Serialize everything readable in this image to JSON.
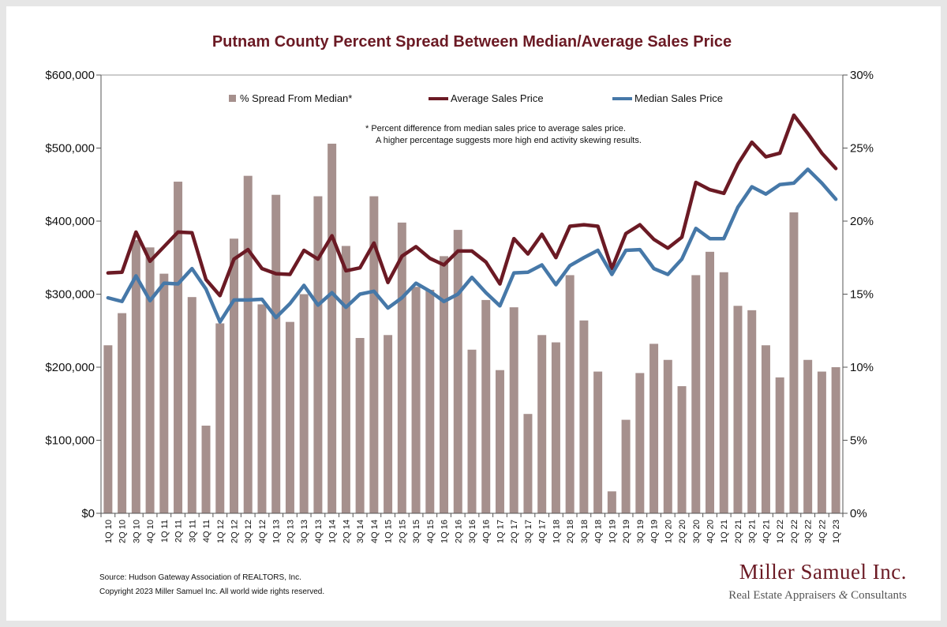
{
  "colors": {
    "bar": "#a6908d",
    "average": "#6b1a24",
    "median": "#4678a8",
    "title": "#6b1a24"
  },
  "footer": {
    "source": "Source: Hudson Gateway Association of REALTORS, Inc.",
    "copyright": "Copyright 2023 Miller Samuel Inc.  All world wide rights reserved."
  },
  "logo": {
    "name": "Miller Samuel Inc.",
    "tagline_part1": "Real Estate Appraisers ",
    "ampersand": "&",
    "tagline_part2": " Consultants"
  },
  "chart_data": {
    "type": "bar",
    "title": "Putnam County Percent Spread Between Median/Average Sales Price",
    "note_line1": "*  Percent difference from median sales price to average sales price.",
    "note_line2": "A higher percentage suggests more high end activity skewing results.",
    "legend_placement": "top",
    "grid": false,
    "categories": [
      "1Q 10",
      "2Q 10",
      "3Q 10",
      "4Q 10",
      "1Q 11",
      "2Q 11",
      "3Q 11",
      "4Q 11",
      "1Q 12",
      "2Q 12",
      "3Q 12",
      "4Q 12",
      "1Q 13",
      "2Q 13",
      "3Q 13",
      "4Q 13",
      "1Q 14",
      "2Q 14",
      "3Q 14",
      "4Q 14",
      "1Q 15",
      "2Q 15",
      "3Q 15",
      "4Q 15",
      "1Q 16",
      "2Q 16",
      "3Q 16",
      "4Q 16",
      "1Q 17",
      "2Q 17",
      "3Q 17",
      "4Q 17",
      "1Q 18",
      "2Q 18",
      "3Q 18",
      "4Q 18",
      "1Q 19",
      "2Q 19",
      "3Q 19",
      "4Q 19",
      "1Q 20",
      "2Q 20",
      "3Q 20",
      "4Q 20",
      "1Q 21",
      "2Q 21",
      "3Q 21",
      "4Q 21",
      "1Q 22",
      "2Q 22",
      "3Q 22",
      "4Q 22",
      "1Q 23"
    ],
    "left_axis": {
      "min": 0,
      "max": 600000,
      "ticks": [
        0,
        100000,
        200000,
        300000,
        400000,
        500000,
        600000
      ],
      "tick_labels": [
        "$0",
        "$100,000",
        "$200,000",
        "$300,000",
        "$400,000",
        "$500,000",
        "$600,000"
      ]
    },
    "right_axis": {
      "min": 0,
      "max": 30,
      "ticks": [
        0,
        5,
        10,
        15,
        20,
        25,
        30
      ],
      "tick_labels": [
        "0%",
        "5%",
        "10%",
        "15%",
        "20%",
        "25%",
        "30%"
      ]
    },
    "series": [
      {
        "name": "% Spread From Median*",
        "type": "bar",
        "axis": "right",
        "values": [
          11.5,
          13.7,
          18.7,
          18.2,
          16.4,
          22.7,
          14.8,
          6.0,
          13.0,
          18.8,
          23.1,
          14.3,
          21.8,
          13.1,
          15.0,
          21.7,
          25.3,
          18.3,
          12.0,
          21.7,
          12.2,
          19.9,
          15.5,
          15.3,
          17.6,
          19.4,
          11.2,
          14.6,
          9.8,
          14.1,
          6.8,
          12.2,
          11.7,
          16.3,
          13.2,
          9.7,
          1.5,
          6.4,
          9.6,
          11.6,
          10.5,
          8.7,
          16.3,
          17.9,
          16.5,
          14.2,
          13.9,
          11.5,
          9.3,
          20.6,
          10.5,
          9.7,
          10.0
        ]
      },
      {
        "name": "Average Sales Price",
        "type": "line",
        "axis": "left",
        "values": [
          329000,
          330000,
          385000,
          345000,
          365000,
          385000,
          384000,
          320000,
          298000,
          348000,
          361000,
          335000,
          328000,
          327000,
          360000,
          348000,
          380000,
          332000,
          336000,
          370000,
          316000,
          352000,
          365000,
          349000,
          340000,
          359000,
          359000,
          344000,
          314000,
          376000,
          355000,
          382000,
          350000,
          393000,
          395000,
          393000,
          335000,
          383000,
          395000,
          375000,
          363000,
          378000,
          453000,
          443000,
          438000,
          478000,
          508000,
          488000,
          493000,
          545000,
          520000,
          493000,
          472000
        ]
      },
      {
        "name": "Median Sales Price",
        "type": "line",
        "axis": "left",
        "values": [
          295000,
          290000,
          325000,
          291000,
          315000,
          314000,
          335000,
          307000,
          262000,
          292000,
          292000,
          293000,
          268000,
          287000,
          312000,
          285000,
          302000,
          282000,
          300000,
          304000,
          281000,
          295000,
          315000,
          304000,
          290000,
          300000,
          323000,
          302000,
          284000,
          329000,
          330000,
          340000,
          313000,
          339000,
          350000,
          360000,
          327000,
          360000,
          361000,
          335000,
          327000,
          348000,
          390000,
          376000,
          376000,
          419000,
          447000,
          437000,
          450000,
          452000,
          471000,
          452000,
          430000
        ]
      }
    ]
  }
}
